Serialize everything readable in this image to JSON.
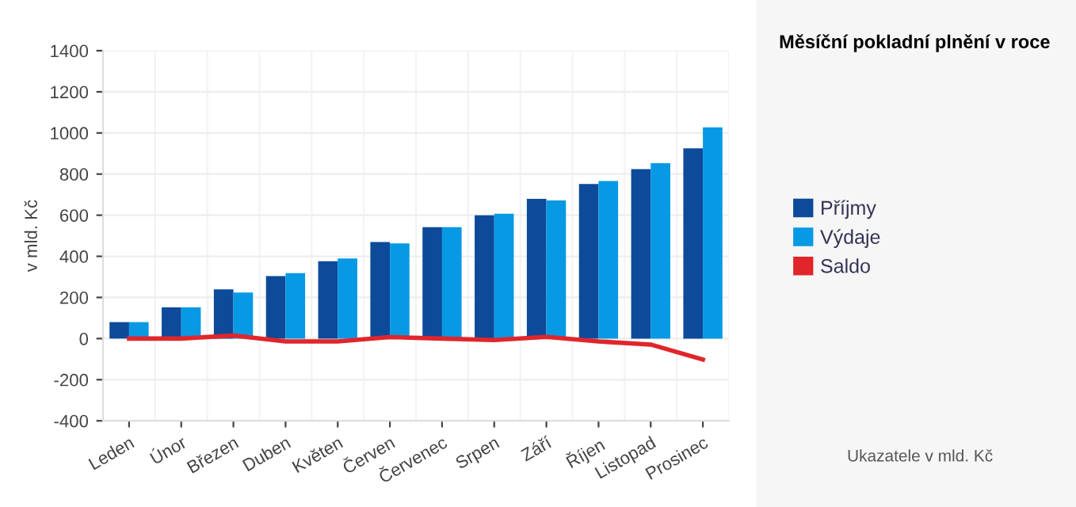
{
  "chart_data": {
    "type": "bar",
    "title": "Měsíční pokladní plnění v roce",
    "ylabel": "v mld. Kč",
    "annotations": [
      "Ukazatele v mld. Kč"
    ],
    "categories": [
      "Leden",
      "Únor",
      "Březen",
      "Duben",
      "Květen",
      "Červen",
      "Červenec",
      "Srpen",
      "Září",
      "Říjen",
      "Listopad",
      "Prosinec"
    ],
    "series": [
      {
        "name": "Příjmy",
        "color": "#0d4a9a",
        "values": [
          80,
          152,
          239,
          304,
          376,
          470,
          542,
          600,
          680,
          752,
          824,
          925
        ]
      },
      {
        "name": "Výdaje",
        "color": "#0799e4",
        "values": [
          80,
          152,
          224,
          318,
          390,
          463,
          542,
          607,
          672,
          766,
          853,
          1027
        ]
      },
      {
        "name": "Saldo",
        "type": "line",
        "color": "#e0262b",
        "values": [
          0,
          0,
          15,
          -14,
          -14,
          7,
          0,
          -7,
          8,
          -14,
          -29,
          -102
        ]
      }
    ],
    "ylim": [
      -400,
      1400
    ],
    "yticks": [
      -400,
      -200,
      0,
      200,
      400,
      600,
      800,
      1000,
      1200,
      1400
    ],
    "grid": true,
    "legend": "right",
    "marker": "none"
  }
}
